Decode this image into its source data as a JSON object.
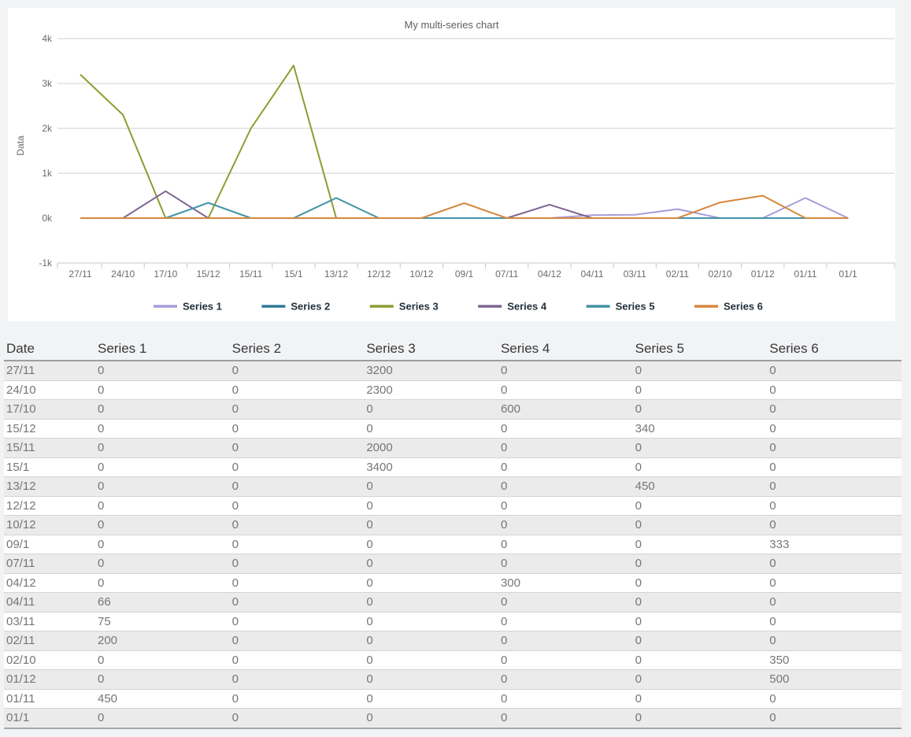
{
  "chart_data": {
    "type": "line",
    "title": "My multi-series chart",
    "xlabel": "",
    "ylabel": "Data",
    "categories": [
      "27/11",
      "24/10",
      "17/10",
      "15/12",
      "15/11",
      "15/1",
      "13/12",
      "12/12",
      "10/12",
      "09/1",
      "07/11",
      "04/12",
      "04/11",
      "03/11",
      "02/11",
      "02/10",
      "01/12",
      "01/11",
      "01/1"
    ],
    "series": [
      {
        "name": "Series 1",
        "color": "#a89cda",
        "values": [
          0,
          0,
          0,
          0,
          0,
          0,
          0,
          0,
          0,
          0,
          0,
          0,
          66,
          75,
          200,
          0,
          0,
          450,
          0
        ]
      },
      {
        "name": "Series 2",
        "color": "#2d7a96",
        "values": [
          0,
          0,
          0,
          0,
          0,
          0,
          0,
          0,
          0,
          0,
          0,
          0,
          0,
          0,
          0,
          0,
          0,
          0,
          0
        ]
      },
      {
        "name": "Series 3",
        "color": "#8b9d31",
        "values": [
          3200,
          2300,
          0,
          0,
          2000,
          3400,
          0,
          0,
          0,
          0,
          0,
          0,
          0,
          0,
          0,
          0,
          0,
          0,
          0
        ]
      },
      {
        "name": "Series 4",
        "color": "#7f6592",
        "values": [
          0,
          0,
          600,
          0,
          0,
          0,
          0,
          0,
          0,
          0,
          0,
          300,
          0,
          0,
          0,
          0,
          0,
          0,
          0
        ]
      },
      {
        "name": "Series 5",
        "color": "#4292a8",
        "values": [
          0,
          0,
          0,
          340,
          0,
          0,
          450,
          0,
          0,
          0,
          0,
          0,
          0,
          0,
          0,
          0,
          0,
          0,
          0
        ]
      },
      {
        "name": "Series 6",
        "color": "#d6883d",
        "values": [
          0,
          0,
          0,
          0,
          0,
          0,
          0,
          0,
          0,
          333,
          0,
          0,
          0,
          0,
          0,
          350,
          500,
          0,
          0
        ]
      }
    ],
    "ylim": [
      -1000,
      4000
    ],
    "ytick_labels": [
      "-1k",
      "0k",
      "1k",
      "2k",
      "3k",
      "4k"
    ],
    "grid": true,
    "legend_position": "bottom",
    "axis_text_color": "#6b6b6b",
    "legend_text_color": "#22303a",
    "gridline_color": "#cfcfcf",
    "axisline_color": "#c4c9cd"
  },
  "table": {
    "headers": [
      "Date",
      "Series 1",
      "Series 2",
      "Series 3",
      "Series 4",
      "Series 5",
      "Series 6"
    ],
    "rows": [
      [
        "27/11",
        "0",
        "0",
        "3200",
        "0",
        "0",
        "0"
      ],
      [
        "24/10",
        "0",
        "0",
        "2300",
        "0",
        "0",
        "0"
      ],
      [
        "17/10",
        "0",
        "0",
        "0",
        "600",
        "0",
        "0"
      ],
      [
        "15/12",
        "0",
        "0",
        "0",
        "0",
        "340",
        "0"
      ],
      [
        "15/11",
        "0",
        "0",
        "2000",
        "0",
        "0",
        "0"
      ],
      [
        "15/1",
        "0",
        "0",
        "3400",
        "0",
        "0",
        "0"
      ],
      [
        "13/12",
        "0",
        "0",
        "0",
        "0",
        "450",
        "0"
      ],
      [
        "12/12",
        "0",
        "0",
        "0",
        "0",
        "0",
        "0"
      ],
      [
        "10/12",
        "0",
        "0",
        "0",
        "0",
        "0",
        "0"
      ],
      [
        "09/1",
        "0",
        "0",
        "0",
        "0",
        "0",
        "333"
      ],
      [
        "07/11",
        "0",
        "0",
        "0",
        "0",
        "0",
        "0"
      ],
      [
        "04/12",
        "0",
        "0",
        "0",
        "300",
        "0",
        "0"
      ],
      [
        "04/11",
        "66",
        "0",
        "0",
        "0",
        "0",
        "0"
      ],
      [
        "03/11",
        "75",
        "0",
        "0",
        "0",
        "0",
        "0"
      ],
      [
        "02/11",
        "200",
        "0",
        "0",
        "0",
        "0",
        "0"
      ],
      [
        "02/10",
        "0",
        "0",
        "0",
        "0",
        "0",
        "350"
      ],
      [
        "01/12",
        "0",
        "0",
        "0",
        "0",
        "0",
        "500"
      ],
      [
        "01/11",
        "450",
        "0",
        "0",
        "0",
        "0",
        "0"
      ],
      [
        "01/1",
        "0",
        "0",
        "0",
        "0",
        "0",
        "0"
      ]
    ]
  }
}
